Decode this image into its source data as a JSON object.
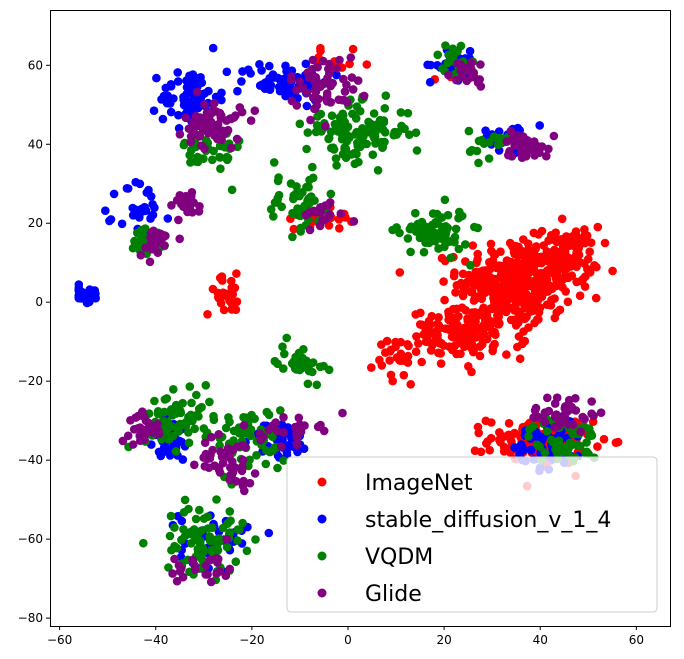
{
  "chart_data": {
    "type": "scatter",
    "title": "",
    "xlabel": "",
    "ylabel": "",
    "xlim": [
      -62,
      67
    ],
    "ylim": [
      -82,
      74
    ],
    "xticks": [
      -60,
      -40,
      -20,
      0,
      20,
      40,
      60
    ],
    "yticks": [
      -80,
      -60,
      -40,
      -20,
      0,
      20,
      40,
      60
    ],
    "xtick_labels": [
      "−60",
      "−40",
      "−20",
      "0",
      "20",
      "40",
      "60"
    ],
    "ytick_labels": [
      "−80",
      "−60",
      "−40",
      "−20",
      "0",
      "20",
      "40",
      "60"
    ],
    "grid": false,
    "legend_placement": "lower-right",
    "series": [
      {
        "name": "ImageNet",
        "color": "#ff0000",
        "clusters": [
          {
            "center": [
              35,
              5
            ],
            "spread": [
              10,
              9
            ],
            "n": 340
          },
          {
            "center": [
              45,
              12
            ],
            "spread": [
              6,
              6
            ],
            "n": 90
          },
          {
            "center": [
              25,
              -8
            ],
            "spread": [
              10,
              5
            ],
            "n": 140
          },
          {
            "center": [
              40,
              -35
            ],
            "spread": [
              9,
              5
            ],
            "n": 150
          },
          {
            "center": [
              -25,
              2
            ],
            "spread": [
              4,
              4
            ],
            "n": 25
          },
          {
            "center": [
              -5,
              22
            ],
            "spread": [
              5,
              3
            ],
            "n": 25
          },
          {
            "center": [
              -2,
              60
            ],
            "spread": [
              6,
              3
            ],
            "n": 15
          },
          {
            "center": [
              20,
              58
            ],
            "spread": [
              4,
              3
            ],
            "n": 10
          },
          {
            "center": [
              10,
              -15
            ],
            "spread": [
              4,
              6
            ],
            "n": 25
          }
        ]
      },
      {
        "name": "stable_diffusion_v_1_4",
        "color": "#0000ff",
        "clusters": [
          {
            "center": [
              -13,
              56
            ],
            "spread": [
              8,
              4
            ],
            "n": 70
          },
          {
            "center": [
              -33,
              52
            ],
            "spread": [
              5,
              6
            ],
            "n": 70
          },
          {
            "center": [
              -43,
              22
            ],
            "spread": [
              4,
              8
            ],
            "n": 35
          },
          {
            "center": [
              -55,
              2
            ],
            "spread": [
              3,
              2
            ],
            "n": 25
          },
          {
            "center": [
              -37,
              -35
            ],
            "spread": [
              4,
              5
            ],
            "n": 40
          },
          {
            "center": [
              -14,
              -35
            ],
            "spread": [
              5,
              4
            ],
            "n": 45
          },
          {
            "center": [
              42,
              -35
            ],
            "spread": [
              6,
              6
            ],
            "n": 60
          },
          {
            "center": [
              22,
              60
            ],
            "spread": [
              4,
              3
            ],
            "n": 30
          },
          {
            "center": [
              34,
              42
            ],
            "spread": [
              5,
              3
            ],
            "n": 30
          },
          {
            "center": [
              -28,
              -60
            ],
            "spread": [
              6,
              6
            ],
            "n": 40
          }
        ]
      },
      {
        "name": "VQDM",
        "color": "#008000",
        "clusters": [
          {
            "center": [
              2,
              43
            ],
            "spread": [
              9,
              6
            ],
            "n": 120
          },
          {
            "center": [
              -10,
              25
            ],
            "spread": [
              6,
              6
            ],
            "n": 50
          },
          {
            "center": [
              18,
              18
            ],
            "spread": [
              6,
              5
            ],
            "n": 70
          },
          {
            "center": [
              -35,
              -30
            ],
            "spread": [
              6,
              6
            ],
            "n": 70
          },
          {
            "center": [
              -20,
              -35
            ],
            "spread": [
              6,
              7
            ],
            "n": 60
          },
          {
            "center": [
              -30,
              -60
            ],
            "spread": [
              7,
              7
            ],
            "n": 80
          },
          {
            "center": [
              -10,
              -15
            ],
            "spread": [
              4,
              4
            ],
            "n": 35
          },
          {
            "center": [
              45,
              -35
            ],
            "spread": [
              6,
              5
            ],
            "n": 50
          },
          {
            "center": [
              22,
              62
            ],
            "spread": [
              3,
              3
            ],
            "n": 20
          },
          {
            "center": [
              -42,
              15
            ],
            "spread": [
              4,
              4
            ],
            "n": 25
          },
          {
            "center": [
              -28,
              38
            ],
            "spread": [
              5,
              6
            ],
            "n": 40
          },
          {
            "center": [
              30,
              40
            ],
            "spread": [
              4,
              3
            ],
            "n": 20
          }
        ]
      },
      {
        "name": "Glide",
        "color": "#800080",
        "clusters": [
          {
            "center": [
              -28,
              45
            ],
            "spread": [
              5,
              5
            ],
            "n": 60
          },
          {
            "center": [
              -5,
              55
            ],
            "spread": [
              6,
              6
            ],
            "n": 60
          },
          {
            "center": [
              37,
              40
            ],
            "spread": [
              4,
              3
            ],
            "n": 40
          },
          {
            "center": [
              -40,
              15
            ],
            "spread": [
              3,
              3
            ],
            "n": 25
          },
          {
            "center": [
              -34,
              25
            ],
            "spread": [
              4,
              3
            ],
            "n": 25
          },
          {
            "center": [
              -42,
              -32
            ],
            "spread": [
              3,
              3
            ],
            "n": 30
          },
          {
            "center": [
              -25,
              -40
            ],
            "spread": [
              5,
              5
            ],
            "n": 45
          },
          {
            "center": [
              45,
              -28
            ],
            "spread": [
              6,
              4
            ],
            "n": 40
          },
          {
            "center": [
              -5,
              22
            ],
            "spread": [
              4,
              3
            ],
            "n": 20
          },
          {
            "center": [
              25,
              58
            ],
            "spread": [
              4,
              3
            ],
            "n": 20
          },
          {
            "center": [
              -30,
              -67
            ],
            "spread": [
              6,
              4
            ],
            "n": 25
          },
          {
            "center": [
              -12,
              -32
            ],
            "spread": [
              5,
              3
            ],
            "n": 25
          }
        ]
      }
    ]
  }
}
